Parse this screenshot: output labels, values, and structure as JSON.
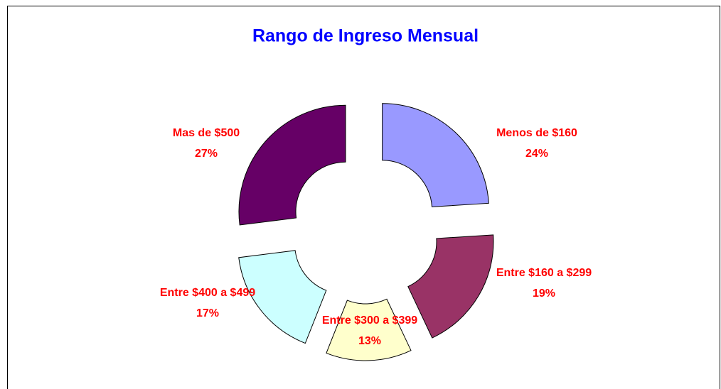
{
  "chart_data": {
    "type": "donut",
    "title": "Rango de Ingreso Mensual",
    "categories": [
      "Menos de $160",
      "Entre $160 a $299",
      "Entre $300 a $399",
      "Entre $400 a $499",
      "Mas de $500"
    ],
    "values": [
      24,
      19,
      13,
      17,
      27
    ],
    "value_labels": [
      "24%",
      "19%",
      "13%",
      "17%",
      "27%"
    ],
    "colors": [
      "#9999ff",
      "#993366",
      "#ffffcc",
      "#ccffff",
      "#660066"
    ],
    "label_color": "#ff0000",
    "title_color": "#0000ff"
  }
}
